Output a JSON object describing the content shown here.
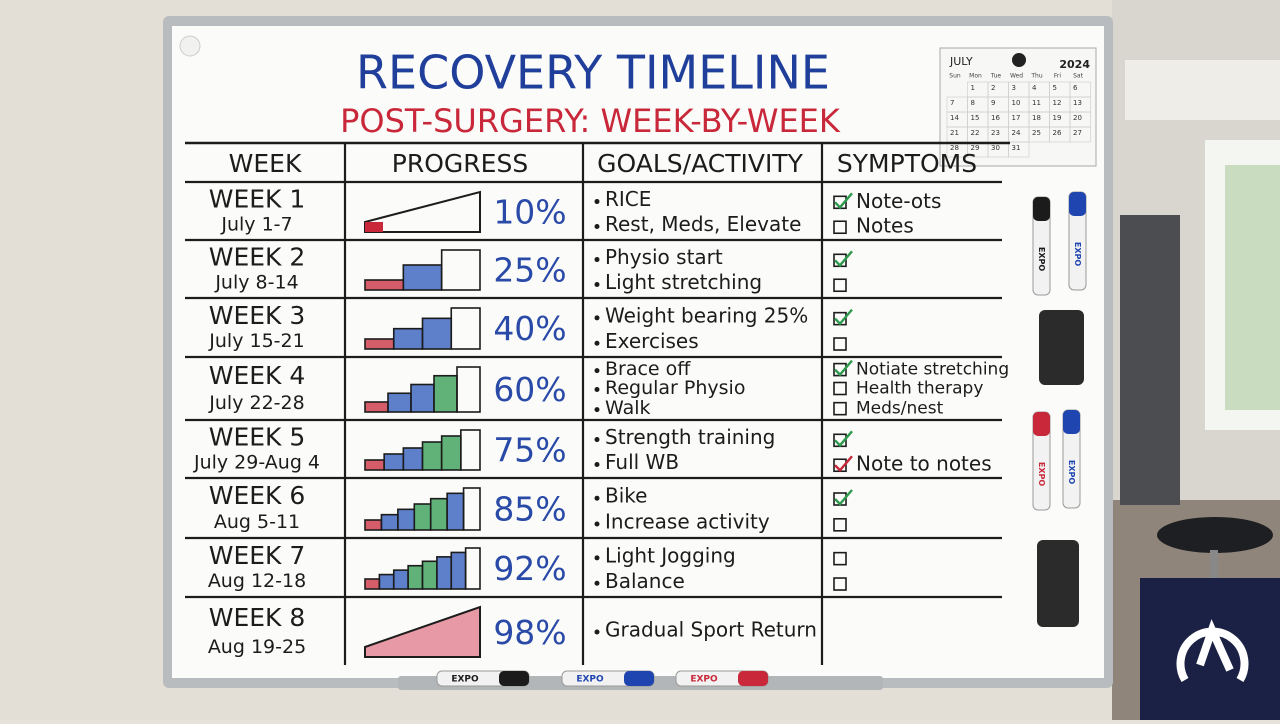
{
  "title": "RECOVERY TIMELINE",
  "subtitle": "POST-SURGERY: WEEK-BY-WEEK",
  "calendar": {
    "month": "JULY",
    "year": "2024",
    "weekdays": [
      "Sun",
      "Mon",
      "Tue",
      "Wed",
      "Thu",
      "Fri",
      "Sat"
    ],
    "days": [
      "1",
      "2",
      "3",
      "4",
      "5",
      "6",
      "7",
      "8",
      "9",
      "10",
      "11",
      "12",
      "13",
      "14",
      "15",
      "16",
      "17",
      "18",
      "19",
      "20",
      "21",
      "22",
      "23",
      "24",
      "25",
      "26",
      "27",
      "28",
      "29",
      "30",
      "31"
    ]
  },
  "table": {
    "headers": [
      "WEEK",
      "PROGRESS",
      "GOALS/ACTIVITY",
      "SYMPTOMS"
    ],
    "rows": [
      {
        "week": "WEEK 1",
        "dates": "July 1-7",
        "progress": "10%",
        "goals": [
          "RICE",
          "Rest, Meds, Elevate"
        ],
        "symptoms": [
          {
            "checked": true,
            "check_color": "#2e9a4e",
            "text": "Note-ots"
          },
          {
            "checked": false,
            "text": "Notes"
          }
        ]
      },
      {
        "week": "WEEK 2",
        "dates": "July 8-14",
        "progress": "25%",
        "goals": [
          "Physio start",
          "Light stretching"
        ],
        "symptoms": [
          {
            "checked": true,
            "check_color": "#2e9a4e"
          },
          {
            "checked": false
          }
        ]
      },
      {
        "week": "WEEK 3",
        "dates": "July 15-21",
        "progress": "40%",
        "goals": [
          "Weight bearing 25%",
          "Exercises"
        ],
        "symptoms": [
          {
            "checked": true,
            "check_color": "#2e9a4e"
          },
          {
            "checked": false
          }
        ]
      },
      {
        "week": "WEEK 4",
        "dates": "July 22-28",
        "progress": "60%",
        "goals": [
          "Brace off",
          "Regular Physio",
          "Walk"
        ],
        "symptoms": [
          {
            "checked": true,
            "check_color": "#2e9a4e",
            "text": "Notiate stretching"
          },
          {
            "checked": false,
            "text": "Health therapy"
          },
          {
            "checked": false,
            "text": "Meds/nest"
          }
        ]
      },
      {
        "week": "WEEK 5",
        "dates": "July 29-Aug 4",
        "progress": "75%",
        "goals": [
          "Strength training",
          "Full WB"
        ],
        "symptoms": [
          {
            "checked": true,
            "check_color": "#2e9a4e"
          },
          {
            "checked": true,
            "check_color": "#c8283a",
            "text": "Note to notes"
          }
        ]
      },
      {
        "week": "WEEK 6",
        "dates": "Aug 5-11",
        "progress": "85%",
        "goals": [
          "Bike",
          "Increase activity"
        ],
        "symptoms": [
          {
            "checked": true,
            "check_color": "#2e9a4e"
          },
          {
            "checked": false
          }
        ]
      },
      {
        "week": "WEEK 7",
        "dates": "Aug 12-18",
        "progress": "92%",
        "goals": [
          "Light Jogging",
          "Balance"
        ],
        "symptoms": [
          {
            "checked": false
          },
          {
            "checked": false
          }
        ]
      },
      {
        "week": "WEEK 8",
        "dates": "Aug 19-25",
        "progress": "98%",
        "goals": [
          "Gradual Sport Return"
        ],
        "symptoms": []
      }
    ]
  },
  "markers": {
    "side": [
      "EXPO",
      "EXPO",
      "EXPO",
      "EXPO"
    ],
    "tray": [
      "EXPO",
      "EXPO",
      "EXPO"
    ]
  }
}
